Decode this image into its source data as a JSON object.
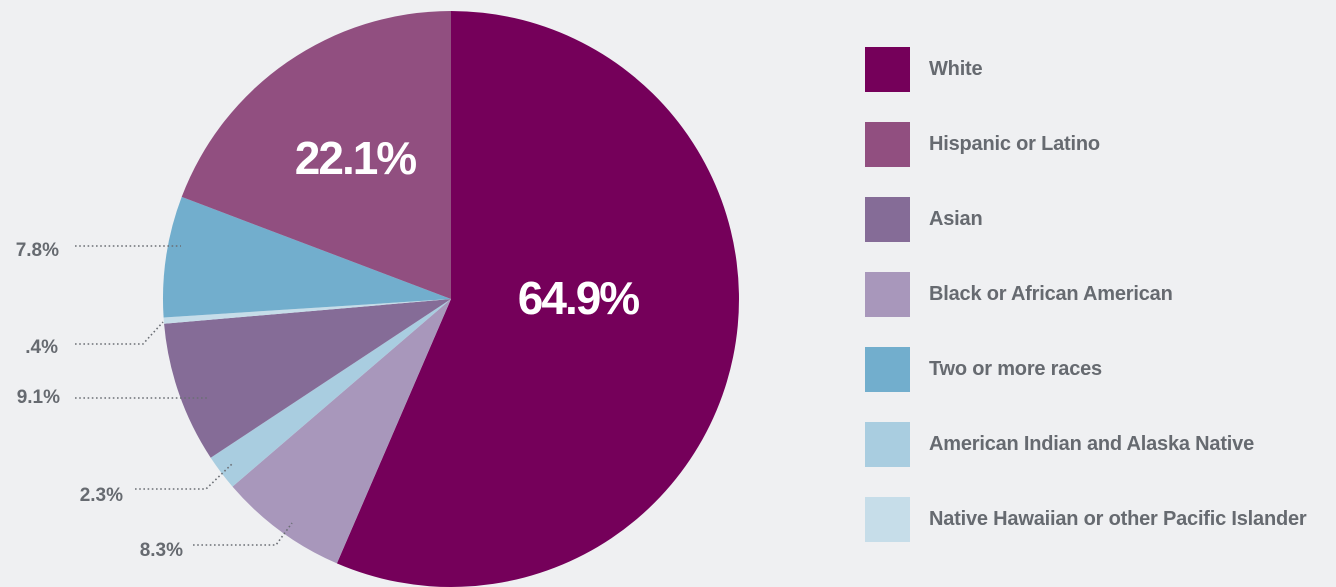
{
  "chart_data": {
    "type": "pie",
    "slices": [
      {
        "name": "White",
        "value": 64.9,
        "label": "64.9%",
        "color": "#75005a",
        "label_style": "inside"
      },
      {
        "name": "Black or African American",
        "value": 8.3,
        "label": "8.3%",
        "color": "#a897bb",
        "label_style": "leader"
      },
      {
        "name": "American Indian and Alaska Native",
        "value": 2.3,
        "label": "2.3%",
        "color": "#a9cde0",
        "label_style": "leader"
      },
      {
        "name": "Asian",
        "value": 9.1,
        "label": "9.1%",
        "color": "#856c97",
        "label_style": "leader"
      },
      {
        "name": "Native Hawaiian or other Pacific Islander",
        "value": 0.4,
        "label": ".4%",
        "color": "#c6dde9",
        "label_style": "leader"
      },
      {
        "name": "Two or more races",
        "value": 7.8,
        "label": "7.8%",
        "color": "#72aecd",
        "label_style": "leader"
      },
      {
        "name": "Hispanic or Latino",
        "value": 22.1,
        "label": "22.1%",
        "color": "#914f80",
        "label_style": "inside"
      }
    ],
    "legend": {
      "placement": "right",
      "items": [
        {
          "label": "White",
          "color": "#75005a"
        },
        {
          "label": "Hispanic or Latino",
          "color": "#914f80"
        },
        {
          "label": "Asian",
          "color": "#856c97"
        },
        {
          "label": "Black or African American",
          "color": "#a897bb"
        },
        {
          "label": "Two or more races",
          "color": "#72aecd"
        },
        {
          "label": "American Indian and Alaska Native",
          "color": "#a9cde0"
        },
        {
          "label": "Native Hawaiian or other Pacific Islander",
          "color": "#c6dde9"
        }
      ]
    }
  }
}
